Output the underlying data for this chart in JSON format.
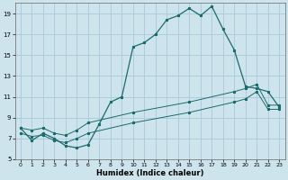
{
  "xlabel": "Humidex (Indice chaleur)",
  "bg_color": "#cde4ec",
  "grid_color": "#a8c8d8",
  "line_color": "#1a6b6b",
  "xlim": [
    -0.5,
    23.5
  ],
  "ylim": [
    5,
    20
  ],
  "xticks": [
    0,
    1,
    2,
    3,
    4,
    5,
    6,
    7,
    8,
    9,
    10,
    11,
    12,
    13,
    14,
    15,
    16,
    17,
    18,
    19,
    20,
    21,
    22,
    23
  ],
  "yticks": [
    5,
    7,
    9,
    11,
    13,
    15,
    17,
    19
  ],
  "curve1_x": [
    0,
    1,
    2,
    3,
    4,
    5,
    6,
    7,
    8,
    9,
    10,
    11,
    12,
    13,
    14,
    15,
    16,
    17,
    18,
    19,
    20,
    21,
    22,
    23
  ],
  "curve1_y": [
    8.0,
    6.8,
    7.5,
    7.0,
    6.3,
    6.1,
    6.4,
    8.4,
    10.5,
    11.0,
    15.8,
    16.2,
    17.0,
    18.4,
    18.8,
    19.5,
    18.8,
    19.7,
    17.5,
    15.5,
    12.0,
    11.8,
    11.5,
    10.0
  ],
  "curve2_x": [
    0,
    1,
    2,
    3,
    4,
    5,
    6,
    10,
    15,
    19,
    20,
    21,
    22,
    23
  ],
  "curve2_y": [
    8.0,
    7.8,
    8.0,
    7.5,
    7.3,
    7.8,
    8.5,
    9.5,
    10.5,
    11.5,
    11.8,
    12.2,
    10.2,
    10.2
  ],
  "curve3_x": [
    0,
    1,
    2,
    3,
    4,
    5,
    6,
    10,
    15,
    19,
    20,
    21,
    22,
    23
  ],
  "curve3_y": [
    7.5,
    7.2,
    7.3,
    6.8,
    6.6,
    7.0,
    7.5,
    8.5,
    9.5,
    10.5,
    10.8,
    11.5,
    9.8,
    9.8
  ]
}
